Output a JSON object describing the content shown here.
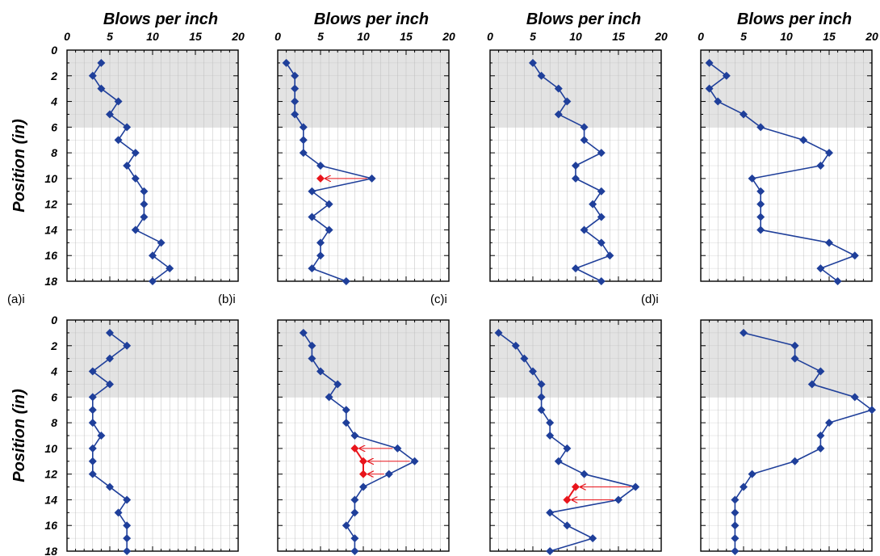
{
  "colors": {
    "series": "#1f3f9a",
    "highlight": "#e8141b",
    "shaded_region": "#e3e3e3",
    "grid": "#bdbdbd",
    "axis": "#000000"
  },
  "chart_data": [
    {
      "type": "line",
      "id": "a-top",
      "panel_label": "(a)i",
      "xlabel": "Blows per inch",
      "ylabel": "Position (in)",
      "xlim": [
        0,
        20
      ],
      "ylim": [
        0,
        18
      ],
      "y_inverted": true,
      "x_axis_position": "top",
      "x_ticks": [
        0,
        5,
        10,
        15,
        20
      ],
      "y_ticks": [
        0,
        2,
        4,
        6,
        8,
        10,
        12,
        14,
        16,
        18
      ],
      "shaded_depth": [
        0,
        6
      ],
      "grid": true,
      "points": [
        [
          4,
          1
        ],
        [
          3,
          2
        ],
        [
          4,
          3
        ],
        [
          6,
          4
        ],
        [
          5,
          5
        ],
        [
          7,
          6
        ],
        [
          6,
          7
        ],
        [
          8,
          8
        ],
        [
          7,
          9
        ],
        [
          8,
          10
        ],
        [
          9,
          11
        ],
        [
          9,
          12
        ],
        [
          9,
          13
        ],
        [
          8,
          14
        ],
        [
          11,
          15
        ],
        [
          10,
          16
        ],
        [
          12,
          17
        ],
        [
          10,
          18
        ]
      ],
      "highlight_points": [],
      "arrows": []
    },
    {
      "type": "line",
      "id": "b-top",
      "panel_label": "(b)i",
      "xlabel": "Blows per inch",
      "ylabel": "",
      "xlim": [
        0,
        20
      ],
      "ylim": [
        0,
        18
      ],
      "y_inverted": true,
      "x_axis_position": "top",
      "x_ticks": [
        0,
        5,
        10,
        15,
        20
      ],
      "y_ticks": [
        0,
        2,
        4,
        6,
        8,
        10,
        12,
        14,
        16,
        18
      ],
      "shaded_depth": [
        0,
        6
      ],
      "grid": true,
      "points": [
        [
          1,
          1
        ],
        [
          2,
          2
        ],
        [
          2,
          3
        ],
        [
          2,
          4
        ],
        [
          2,
          5
        ],
        [
          3,
          6
        ],
        [
          3,
          7
        ],
        [
          3,
          8
        ],
        [
          5,
          9
        ],
        [
          11,
          10
        ],
        [
          4,
          11
        ],
        [
          6,
          12
        ],
        [
          4,
          13
        ],
        [
          6,
          14
        ],
        [
          5,
          15
        ],
        [
          5,
          16
        ],
        [
          4,
          17
        ],
        [
          8,
          18
        ]
      ],
      "highlight_points": [
        [
          5,
          10
        ]
      ],
      "arrows": [
        {
          "from": [
            11,
            10
          ],
          "to": [
            5,
            10
          ]
        }
      ]
    },
    {
      "type": "line",
      "id": "c-top",
      "panel_label": "(c)i",
      "xlabel": "Blows per inch",
      "ylabel": "",
      "xlim": [
        0,
        20
      ],
      "ylim": [
        0,
        18
      ],
      "y_inverted": true,
      "x_axis_position": "top",
      "x_ticks": [
        0,
        5,
        10,
        15,
        20
      ],
      "y_ticks": [
        0,
        2,
        4,
        6,
        8,
        10,
        12,
        14,
        16,
        18
      ],
      "shaded_depth": [
        0,
        6
      ],
      "grid": true,
      "points": [
        [
          5,
          1
        ],
        [
          6,
          2
        ],
        [
          8,
          3
        ],
        [
          9,
          4
        ],
        [
          8,
          5
        ],
        [
          11,
          6
        ],
        [
          11,
          7
        ],
        [
          13,
          8
        ],
        [
          10,
          9
        ],
        [
          10,
          10
        ],
        [
          13,
          11
        ],
        [
          12,
          12
        ],
        [
          13,
          13
        ],
        [
          11,
          14
        ],
        [
          13,
          15
        ],
        [
          14,
          16
        ],
        [
          10,
          17
        ],
        [
          13,
          18
        ]
      ],
      "highlight_points": [],
      "arrows": []
    },
    {
      "type": "line",
      "id": "d-top",
      "panel_label": "(d)i",
      "xlabel": "Blows per inch",
      "ylabel": "",
      "xlim": [
        0,
        20
      ],
      "ylim": [
        0,
        18
      ],
      "y_inverted": true,
      "x_axis_position": "top",
      "x_ticks": [
        0,
        5,
        10,
        15,
        20
      ],
      "y_ticks": [
        0,
        2,
        4,
        6,
        8,
        10,
        12,
        14,
        16,
        18
      ],
      "shaded_depth": [
        0,
        6
      ],
      "grid": true,
      "points": [
        [
          1,
          1
        ],
        [
          3,
          2
        ],
        [
          1,
          3
        ],
        [
          2,
          4
        ],
        [
          5,
          5
        ],
        [
          7,
          6
        ],
        [
          12,
          7
        ],
        [
          15,
          8
        ],
        [
          14,
          9
        ],
        [
          6,
          10
        ],
        [
          7,
          11
        ],
        [
          7,
          12
        ],
        [
          7,
          13
        ],
        [
          7,
          14
        ],
        [
          15,
          15
        ],
        [
          18,
          16
        ],
        [
          14,
          17
        ],
        [
          16,
          18
        ]
      ],
      "highlight_points": [],
      "arrows": []
    },
    {
      "type": "line",
      "id": "a-bottom",
      "panel_label": "",
      "xlabel": "",
      "ylabel": "Position (in)",
      "xlim": [
        0,
        20
      ],
      "ylim": [
        0,
        18
      ],
      "y_inverted": true,
      "x_axis_position": "top",
      "x_ticks": [
        0,
        5,
        10,
        15,
        20
      ],
      "y_ticks": [
        0,
        2,
        4,
        6,
        8,
        10,
        12,
        14,
        16,
        18
      ],
      "shaded_depth": [
        0,
        6
      ],
      "grid": true,
      "points": [
        [
          5,
          1
        ],
        [
          7,
          2
        ],
        [
          5,
          3
        ],
        [
          3,
          4
        ],
        [
          5,
          5
        ],
        [
          3,
          6
        ],
        [
          3,
          7
        ],
        [
          3,
          8
        ],
        [
          4,
          9
        ],
        [
          3,
          10
        ],
        [
          3,
          11
        ],
        [
          3,
          12
        ],
        [
          5,
          13
        ],
        [
          7,
          14
        ],
        [
          6,
          15
        ],
        [
          7,
          16
        ],
        [
          7,
          17
        ],
        [
          7,
          18
        ]
      ],
      "highlight_points": [],
      "arrows": []
    },
    {
      "type": "line",
      "id": "b-bottom",
      "panel_label": "",
      "xlabel": "",
      "ylabel": "",
      "xlim": [
        0,
        20
      ],
      "ylim": [
        0,
        18
      ],
      "y_inverted": true,
      "x_axis_position": "top",
      "x_ticks": [
        0,
        5,
        10,
        15,
        20
      ],
      "y_ticks": [
        0,
        2,
        4,
        6,
        8,
        10,
        12,
        14,
        16,
        18
      ],
      "shaded_depth": [
        0,
        6
      ],
      "grid": true,
      "points": [
        [
          3,
          1
        ],
        [
          4,
          2
        ],
        [
          4,
          3
        ],
        [
          5,
          4
        ],
        [
          7,
          5
        ],
        [
          6,
          6
        ],
        [
          8,
          7
        ],
        [
          8,
          8
        ],
        [
          9,
          9
        ],
        [
          14,
          10
        ],
        [
          16,
          11
        ],
        [
          13,
          12
        ],
        [
          10,
          13
        ],
        [
          9,
          14
        ],
        [
          9,
          15
        ],
        [
          8,
          16
        ],
        [
          9,
          17
        ],
        [
          9,
          18
        ]
      ],
      "highlight_points": [
        [
          9,
          10
        ],
        [
          10,
          11
        ],
        [
          10,
          12
        ]
      ],
      "arrows": [
        {
          "from": [
            14,
            10
          ],
          "to": [
            9,
            10
          ]
        },
        {
          "from": [
            16,
            11
          ],
          "to": [
            10,
            11
          ]
        },
        {
          "from": [
            13,
            12
          ],
          "to": [
            10,
            12
          ]
        }
      ]
    },
    {
      "type": "line",
      "id": "c-bottom",
      "panel_label": "",
      "xlabel": "",
      "ylabel": "",
      "xlim": [
        0,
        20
      ],
      "ylim": [
        0,
        18
      ],
      "y_inverted": true,
      "x_axis_position": "top",
      "x_ticks": [
        0,
        5,
        10,
        15,
        20
      ],
      "y_ticks": [
        0,
        2,
        4,
        6,
        8,
        10,
        12,
        14,
        16,
        18
      ],
      "shaded_depth": [
        0,
        6
      ],
      "grid": true,
      "points": [
        [
          1,
          1
        ],
        [
          3,
          2
        ],
        [
          4,
          3
        ],
        [
          5,
          4
        ],
        [
          6,
          5
        ],
        [
          6,
          6
        ],
        [
          6,
          7
        ],
        [
          7,
          8
        ],
        [
          7,
          9
        ],
        [
          9,
          10
        ],
        [
          8,
          11
        ],
        [
          11,
          12
        ],
        [
          17,
          13
        ],
        [
          15,
          14
        ],
        [
          7,
          15
        ],
        [
          9,
          16
        ],
        [
          12,
          17
        ],
        [
          7,
          18
        ]
      ],
      "highlight_points": [
        [
          10,
          13
        ],
        [
          9,
          14
        ]
      ],
      "arrows": [
        {
          "from": [
            17,
            13
          ],
          "to": [
            10,
            13
          ]
        },
        {
          "from": [
            15,
            14
          ],
          "to": [
            9,
            14
          ]
        }
      ]
    },
    {
      "type": "line",
      "id": "d-bottom",
      "panel_label": "",
      "xlabel": "",
      "ylabel": "",
      "xlim": [
        0,
        20
      ],
      "ylim": [
        0,
        18
      ],
      "y_inverted": true,
      "x_axis_position": "top",
      "x_ticks": [
        0,
        5,
        10,
        15,
        20
      ],
      "y_ticks": [
        0,
        2,
        4,
        6,
        8,
        10,
        12,
        14,
        16,
        18
      ],
      "shaded_depth": [
        0,
        6
      ],
      "grid": true,
      "points": [
        [
          5,
          1
        ],
        [
          11,
          2
        ],
        [
          11,
          3
        ],
        [
          14,
          4
        ],
        [
          13,
          5
        ],
        [
          18,
          6
        ],
        [
          20,
          7
        ],
        [
          15,
          8
        ],
        [
          14,
          9
        ],
        [
          14,
          10
        ],
        [
          11,
          11
        ],
        [
          6,
          12
        ],
        [
          5,
          13
        ],
        [
          4,
          14
        ],
        [
          4,
          15
        ],
        [
          4,
          16
        ],
        [
          4,
          17
        ],
        [
          4,
          18
        ]
      ],
      "highlight_points": [],
      "arrows": []
    }
  ]
}
